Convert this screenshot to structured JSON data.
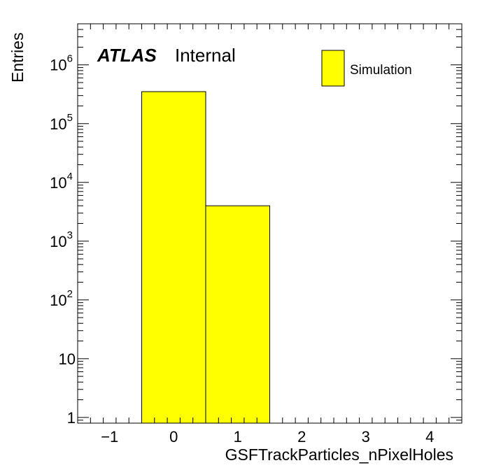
{
  "chart_data": {
    "type": "bar",
    "histogram": true,
    "bins": [
      {
        "low": -0.5,
        "high": 0.5,
        "value": 350000
      },
      {
        "low": 0.5,
        "high": 1.5,
        "value": 4000
      }
    ],
    "xlabel": "GSFTrackParticles_nPixelHoles",
    "ylabel": "Entries",
    "xlim": [
      -1.5,
      4.5
    ],
    "ylim": [
      0.8,
      5000000
    ],
    "yscale": "log",
    "x_ticks": [
      "−1",
      "0",
      "1",
      "2",
      "3",
      "4"
    ],
    "x_tick_values": [
      -1,
      0,
      1,
      2,
      3,
      4
    ],
    "y_ticks": [
      {
        "value": 1,
        "base": "1",
        "exp": ""
      },
      {
        "value": 10,
        "base": "10",
        "exp": ""
      },
      {
        "value": 100,
        "base": "10",
        "exp": "2"
      },
      {
        "value": 1000,
        "base": "10",
        "exp": "3"
      },
      {
        "value": 10000,
        "base": "10",
        "exp": "4"
      },
      {
        "value": 100000,
        "base": "10",
        "exp": "5"
      },
      {
        "value": 1000000,
        "base": "10",
        "exp": "6"
      }
    ],
    "grid": false,
    "legend": {
      "position": "top-right",
      "entries": [
        {
          "label": "Simulation",
          "color": "#ffff00"
        }
      ]
    },
    "fill_color": "#ffff00",
    "line_color": "#000000"
  },
  "labels": {
    "atlas": "ATLAS",
    "internal": "Internal"
  }
}
